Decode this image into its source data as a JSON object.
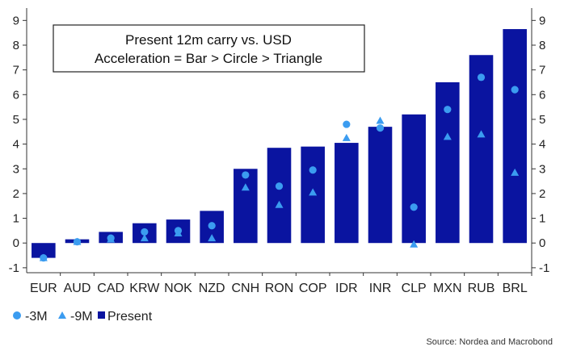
{
  "chart_data": {
    "type": "bar",
    "title_lines": [
      "Present 12m carry vs. USD",
      "Acceleration = Bar > Circle > Triangle"
    ],
    "categories": [
      "EUR",
      "AUD",
      "CAD",
      "KRW",
      "NOK",
      "NZD",
      "CNH",
      "RON",
      "COP",
      "IDR",
      "INR",
      "CLP",
      "MXN",
      "RUB",
      "BRL"
    ],
    "series": [
      {
        "name": "Present",
        "kind": "bar",
        "color": "#0a14a0",
        "values": [
          -0.6,
          0.15,
          0.45,
          0.8,
          0.95,
          1.3,
          3.0,
          3.85,
          3.9,
          4.05,
          4.7,
          5.2,
          6.5,
          7.6,
          8.65
        ]
      },
      {
        "name": "-3M",
        "kind": "circle",
        "color": "#3b9cf0",
        "values": [
          -0.6,
          0.05,
          0.2,
          0.45,
          0.5,
          0.7,
          2.75,
          2.3,
          2.95,
          4.8,
          4.65,
          1.45,
          5.4,
          6.7,
          6.2
        ]
      },
      {
        "name": "-9M",
        "kind": "triangle",
        "color": "#3b9cf0",
        "values": [
          -0.6,
          0.05,
          0.15,
          0.2,
          0.4,
          0.2,
          2.25,
          1.55,
          2.05,
          4.25,
          4.95,
          -0.05,
          4.3,
          4.4,
          2.85
        ]
      }
    ],
    "ylim": [
      -1.2,
      9.5
    ],
    "yticks": [
      -1,
      0,
      1,
      2,
      3,
      4,
      5,
      6,
      7,
      8,
      9
    ],
    "ytick_labels": [
      "-1",
      "0",
      "1",
      "2",
      "3",
      "4",
      "5",
      "6",
      "7",
      "8",
      "9"
    ],
    "dual_y_axis": true,
    "grid": false,
    "legend": {
      "placement": "bottom-left",
      "entries": [
        "-3M",
        "-9M",
        "Present"
      ]
    },
    "source": "Source: Nordea and Macrobond"
  }
}
